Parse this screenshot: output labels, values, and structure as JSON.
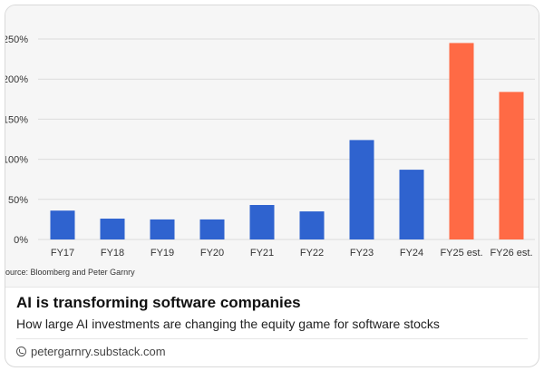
{
  "chart_data": {
    "type": "bar",
    "categories": [
      "FY17",
      "FY18",
      "FY19",
      "FY20",
      "FY21",
      "FY22",
      "FY23",
      "FY24",
      "FY25 est.",
      "FY26 est."
    ],
    "values": [
      36,
      26,
      25,
      25,
      43,
      35,
      124,
      87,
      245,
      184
    ],
    "bar_colors": [
      "#2f63cf",
      "#2f63cf",
      "#2f63cf",
      "#2f63cf",
      "#2f63cf",
      "#2f63cf",
      "#2f63cf",
      "#2f63cf",
      "#ff6a45",
      "#ff6a45"
    ],
    "y_ticks": [
      0,
      50,
      100,
      150,
      200,
      250
    ],
    "y_tick_labels": [
      "0%",
      "50%",
      "100%",
      "150%",
      "200%",
      "250%"
    ],
    "ylim": [
      0,
      250
    ],
    "grid": true
  },
  "source_text": "ource: Bloomberg and Peter Garnry",
  "card": {
    "title": "AI is transforming software companies",
    "subtitle": "How large AI investments are changing the equity game for software stocks",
    "link_icon": "link-icon",
    "domain": "petergarnry.substack.com"
  }
}
